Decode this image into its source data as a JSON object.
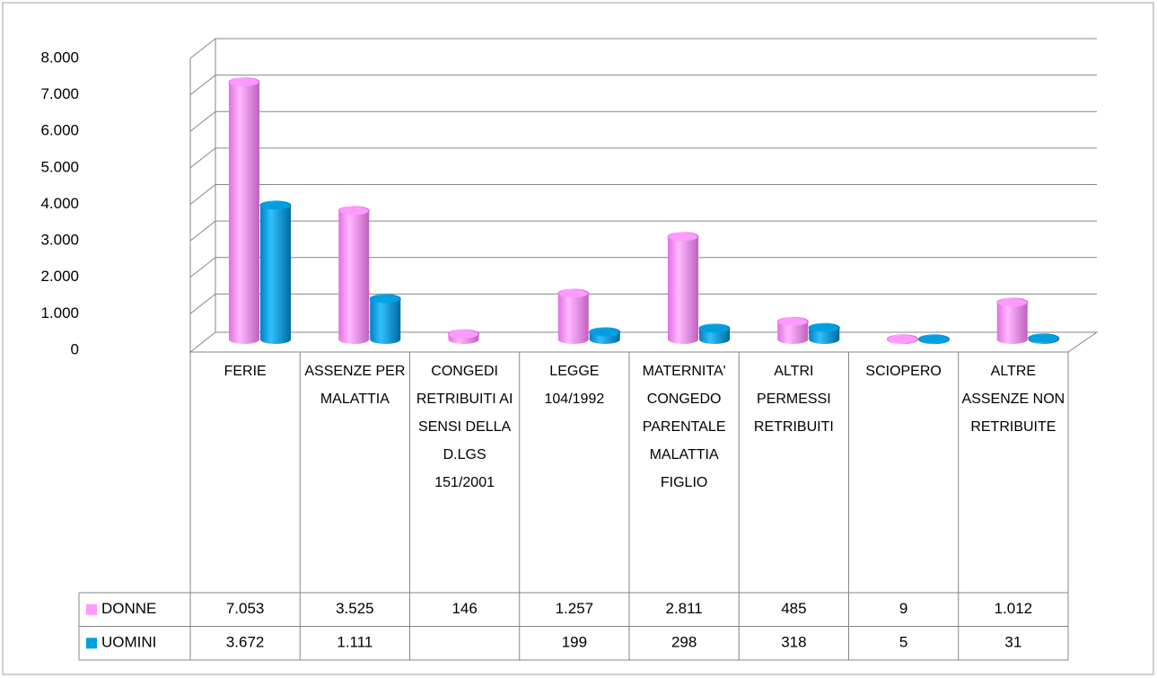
{
  "chart_data": {
    "type": "bar3d",
    "categories": [
      "FERIE",
      "ASSENZE PER MALATTIA",
      "CONGEDI RETRIBUITI AI SENSI DELLA D.LGS 151/2001",
      "LEGGE 104/1992",
      "MATERNITA' CONGEDO PARENTALE MALATTIA FIGLIO",
      "ALTRI PERMESSI RETRIBUITI",
      "SCIOPERO",
      "ALTRE ASSENZE NON RETRIBUITE"
    ],
    "series": [
      {
        "name": "DONNE",
        "color": "#ff99ff",
        "values": [
          7053,
          3525,
          146,
          1257,
          2811,
          485,
          9,
          1012
        ],
        "value_labels": [
          "7.053",
          "3.525",
          "146",
          "1.257",
          "2.811",
          "485",
          "9",
          "1.012"
        ]
      },
      {
        "name": "UOMINI",
        "color": "#00a0e0",
        "values": [
          3672,
          1111,
          null,
          199,
          298,
          318,
          5,
          31
        ],
        "value_labels": [
          "3.672",
          "1.111",
          null,
          "199",
          "298",
          "318",
          "5",
          "31"
        ]
      }
    ],
    "ylim": [
      0,
      8000
    ],
    "yticks": [
      0,
      {
        "value": 1000,
        "label": "1.000"
      },
      {
        "value": 2000,
        "label": "2.000"
      },
      {
        "value": 3000,
        "label": "3.000"
      },
      {
        "value": 4000,
        "label": "4.000"
      },
      {
        "value": 5000,
        "label": "5.000"
      },
      {
        "value": 6000,
        "label": "6.000"
      },
      {
        "value": 7000,
        "label": "7.000"
      },
      {
        "value": 8000,
        "label": "8.000"
      }
    ],
    "grid": true,
    "data_table": true
  }
}
